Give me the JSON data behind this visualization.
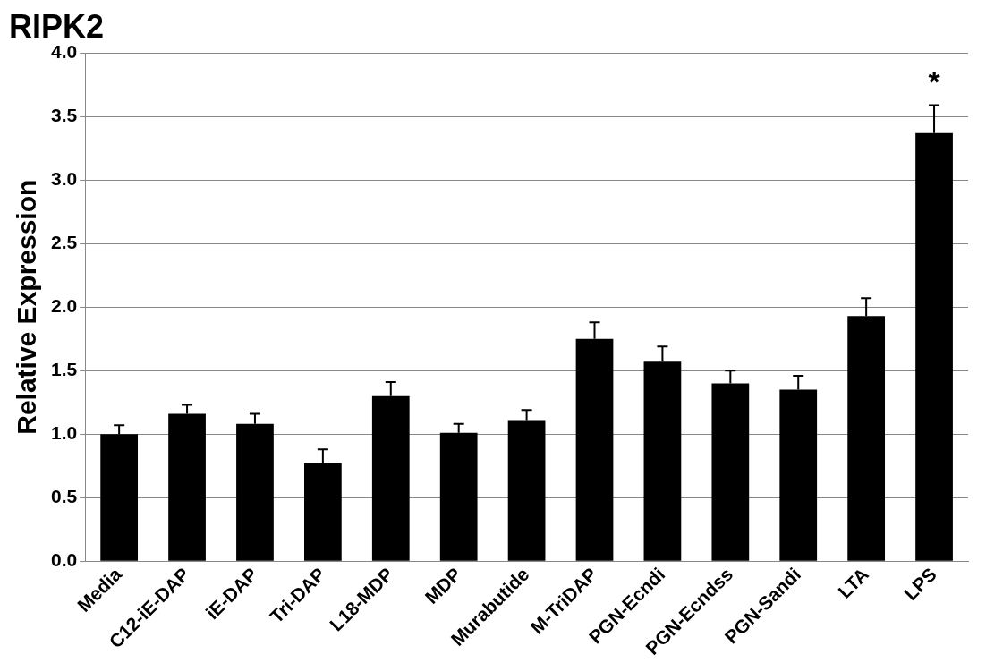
{
  "chart_data": {
    "type": "bar",
    "title": "RIPK2",
    "ylabel": "Relative Expression",
    "categories": [
      "Media",
      "C12-iE-DAP",
      "iE-DAP",
      "Tri-DAP",
      "L18-MDP",
      "MDP",
      "Murabutide",
      "M-TriDAP",
      "PGN-Ecndi",
      "PGN-Ecndss",
      "PGN-Sandi",
      "LTA",
      "LPS"
    ],
    "values": [
      1.0,
      1.16,
      1.08,
      0.77,
      1.3,
      1.01,
      1.11,
      1.75,
      1.57,
      1.4,
      1.35,
      1.93,
      3.37
    ],
    "errors": [
      [
        1.0,
        1.07
      ],
      [
        1.16,
        1.23
      ],
      [
        1.08,
        1.16
      ],
      [
        0.77,
        0.88
      ],
      [
        1.3,
        1.41
      ],
      [
        1.01,
        1.08
      ],
      [
        1.11,
        1.19
      ],
      [
        1.75,
        1.88
      ],
      [
        1.57,
        1.69
      ],
      [
        1.4,
        1.5
      ],
      [
        1.35,
        1.46
      ],
      [
        1.93,
        2.07
      ],
      [
        3.37,
        3.59
      ]
    ],
    "color": "#000000",
    "ylim": [
      0,
      4
    ],
    "yticks": [
      {
        "value": 0,
        "label": "0.0"
      },
      {
        "value": 0.5,
        "label": "0.5"
      },
      {
        "value": 1,
        "label": "1.0"
      },
      {
        "value": 1.5,
        "label": "1.5"
      },
      {
        "value": 2,
        "label": "2.0"
      },
      {
        "value": 2.5,
        "label": "2.5"
      },
      {
        "value": 3,
        "label": "3.0"
      },
      {
        "value": 3.5,
        "label": "3.5"
      },
      {
        "value": 4,
        "label": "4.0"
      }
    ],
    "grid": "y",
    "legend": false,
    "annotations": [
      "*"
    ]
  }
}
